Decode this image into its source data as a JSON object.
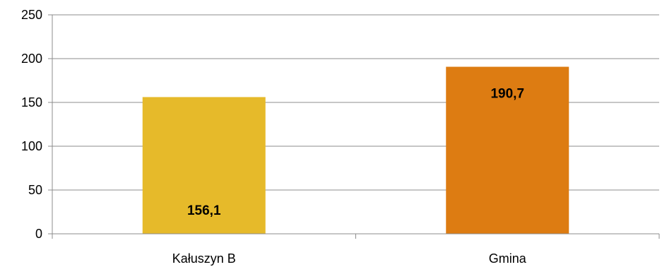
{
  "chart_data": {
    "type": "bar",
    "categories": [
      "Kałuszyn B",
      "Gmina"
    ],
    "values": [
      156.1,
      190.7
    ],
    "data_labels": [
      "156,1",
      "190,7"
    ],
    "colors": [
      "#E6BA2A",
      "#DD7C12"
    ],
    "ylim": [
      0,
      250
    ],
    "yticks": [
      0,
      50,
      100,
      150,
      200,
      250
    ],
    "grid": true,
    "legend": "none",
    "title": "",
    "xlabel": "",
    "ylabel": ""
  }
}
